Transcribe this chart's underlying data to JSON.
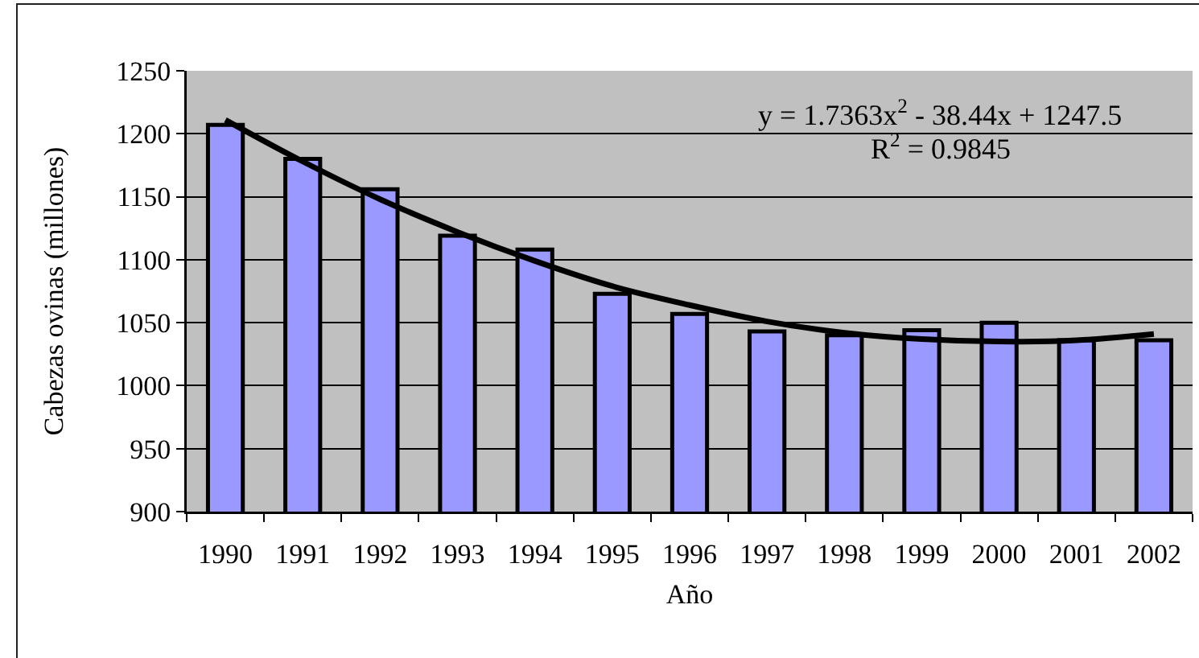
{
  "chart_data": {
    "type": "bar",
    "xlabel": "Año",
    "ylabel": "Cabezas ovinas (millones)",
    "categories": [
      "1990",
      "1991",
      "1992",
      "1993",
      "1994",
      "1995",
      "1996",
      "1997",
      "1998",
      "1999",
      "2000",
      "2001",
      "2002"
    ],
    "series": [
      {
        "color": "#9999ff",
        "values": [
          1207,
          1180,
          1156,
          1119,
          1108,
          1073,
          1057,
          1043,
          1040,
          1044,
          1050,
          1036,
          1036
        ]
      },
      {
        "type": "line",
        "color": "#000000",
        "values": [
          1211,
          1178,
          1148,
          1122,
          1099,
          1079,
          1064,
          1051,
          1042,
          1037,
          1035,
          1036,
          1041
        ]
      }
    ],
    "ylim": [
      900,
      1250
    ],
    "yticks": [
      900,
      950,
      1000,
      1050,
      1100,
      1150,
      1200,
      1250
    ],
    "grid": "y",
    "legend": false,
    "marker": "none",
    "line_style": "solid",
    "annotations": [
      "y = 1.7363x$^{2}$ - 38.44x + 1247.5",
      "R$^{2}$ = 0.9845"
    ]
  }
}
